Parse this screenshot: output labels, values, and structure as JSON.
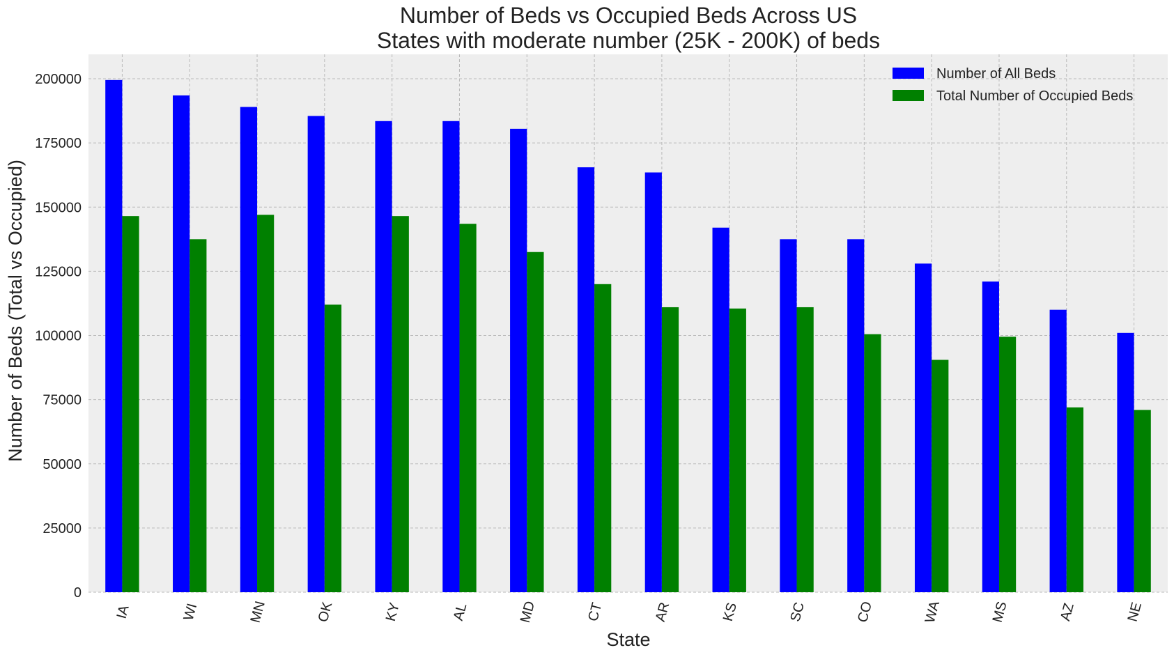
{
  "chart_data": {
    "type": "bar",
    "title": "Number of Beds vs Occupied Beds Across US\nStates with moderate number (25K - 200K) of beds",
    "xlabel": "State",
    "ylabel": "Number of Beds (Total vs Occupied)",
    "categories": [
      "IA",
      "WI",
      "MN",
      "OK",
      "KY",
      "AL",
      "MD",
      "CT",
      "AR",
      "KS",
      "SC",
      "CO",
      "WA",
      "MS",
      "AZ",
      "NE"
    ],
    "series": [
      {
        "name": "Number of All Beds",
        "color": "#0000ff",
        "values": [
          199500,
          193500,
          189000,
          185500,
          183500,
          183500,
          180500,
          165500,
          163500,
          142000,
          137500,
          137500,
          128000,
          121000,
          110000,
          101000
        ]
      },
      {
        "name": "Total Number of Occupied Beds",
        "color": "#008000",
        "values": [
          146500,
          137500,
          147000,
          112000,
          146500,
          143500,
          132500,
          120000,
          111000,
          110500,
          111000,
          100500,
          90500,
          99500,
          72000,
          71000
        ]
      }
    ],
    "ylim": [
      0,
      209500
    ],
    "yticks": [
      0,
      25000,
      50000,
      75000,
      100000,
      125000,
      150000,
      175000,
      200000
    ],
    "yticklabels": [
      "0",
      "25000",
      "50000",
      "75000",
      "100000",
      "125000",
      "150000",
      "175000",
      "200000"
    ],
    "grid": true,
    "legend_position": "top-right",
    "background_color": "#eeeeee"
  }
}
